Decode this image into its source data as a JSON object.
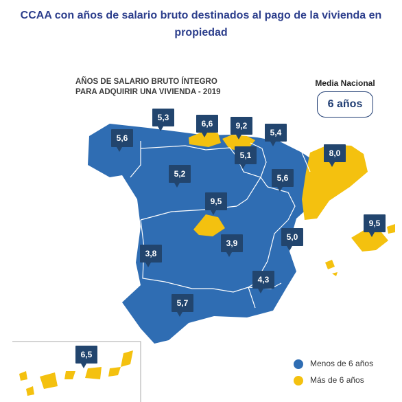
{
  "title": "CCAA con años de salario bruto destinados al pago de la vivienda en propiedad",
  "subtitle_line1": "AÑOS DE SALARIO BRUTO ÍNTEGRO",
  "subtitle_line2": "PARA ADQUIRIR UNA VIVIENDA - 2019",
  "media": {
    "label": "Media Nacional",
    "value": "6 años"
  },
  "colors": {
    "below": "#2f6db3",
    "above": "#f4c10f",
    "callout": "#22456e",
    "title": "#2c3e8c"
  },
  "regions": [
    {
      "name": "Galicia",
      "value": "5,6",
      "category": "below"
    },
    {
      "name": "Asturias",
      "value": "5,3",
      "category": "below"
    },
    {
      "name": "Cantabria",
      "value": "6,6",
      "category": "above"
    },
    {
      "name": "País Vasco",
      "value": "9,2",
      "category": "above"
    },
    {
      "name": "Navarra",
      "value": "5,4",
      "category": "below"
    },
    {
      "name": "La Rioja",
      "value": "5,1",
      "category": "below"
    },
    {
      "name": "Cataluña",
      "value": "8,0",
      "category": "above"
    },
    {
      "name": "Castilla y León",
      "value": "5,2",
      "category": "below"
    },
    {
      "name": "Aragón",
      "value": "5,6",
      "category": "below"
    },
    {
      "name": "Madrid",
      "value": "9,5",
      "category": "above"
    },
    {
      "name": "Islas Baleares",
      "value": "9,5",
      "category": "above"
    },
    {
      "name": "Castilla-La Mancha",
      "value": "3,9",
      "category": "below"
    },
    {
      "name": "Comunidad Valenciana",
      "value": "5,0",
      "category": "below"
    },
    {
      "name": "Extremadura",
      "value": "3,8",
      "category": "below"
    },
    {
      "name": "Región de Murcia",
      "value": "4,3",
      "category": "below"
    },
    {
      "name": "Andalucía",
      "value": "5,7",
      "category": "below"
    },
    {
      "name": "Canarias",
      "value": "6,5",
      "category": "above"
    }
  ],
  "legend": [
    {
      "label": "Menos de 6 años",
      "color": "#2f6db3"
    },
    {
      "label": "Más de 6 años",
      "color": "#f4c10f"
    }
  ]
}
